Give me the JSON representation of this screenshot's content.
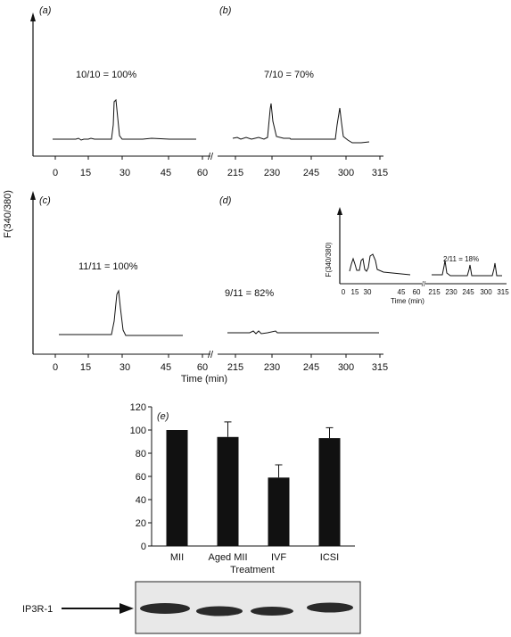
{
  "shared_ylabel": "F(340/380)",
  "panels": {
    "a": {
      "label": "(a)",
      "annotation": "10/10 = 100%",
      "ticks": [
        "0",
        "15",
        "30",
        "45",
        "60"
      ]
    },
    "b": {
      "label": "(b)",
      "annotation": "7/10 = 70%",
      "ticks": [
        "215",
        "230",
        "245",
        "300",
        "315"
      ]
    },
    "c": {
      "label": "(c)",
      "annotation": "11/11 = 100%",
      "ticks": [
        "0",
        "15",
        "30",
        "45",
        "60"
      ]
    },
    "d": {
      "label": "(d)",
      "annotation": "9/11 = 82%",
      "ticks": [
        "215",
        "230",
        "245",
        "300",
        "315"
      ]
    },
    "d_inset": {
      "ylabel": "F(340/380)",
      "annotation": "2/11 = 18%",
      "xlabel": "Time (min)",
      "ticks_left": [
        "0",
        "15",
        "30",
        "45",
        "60"
      ],
      "ticks_right": [
        "215",
        "230",
        "245",
        "300",
        "315"
      ]
    },
    "time_label": "Time (min)"
  },
  "chart_data": {
    "type": "bar",
    "label": "(e)",
    "categories": [
      "MII",
      "Aged MII",
      "IVF",
      "ICSI"
    ],
    "values": [
      100,
      94,
      59,
      93
    ],
    "errors": [
      0,
      13,
      11,
      9
    ],
    "xlabel": "Treatment",
    "ylabel": "",
    "ylim": [
      0,
      120
    ],
    "yticks": [
      0,
      20,
      40,
      60,
      80,
      100,
      120
    ],
    "bar_color": "#111111"
  },
  "blot": {
    "label": "IP3R-1"
  }
}
